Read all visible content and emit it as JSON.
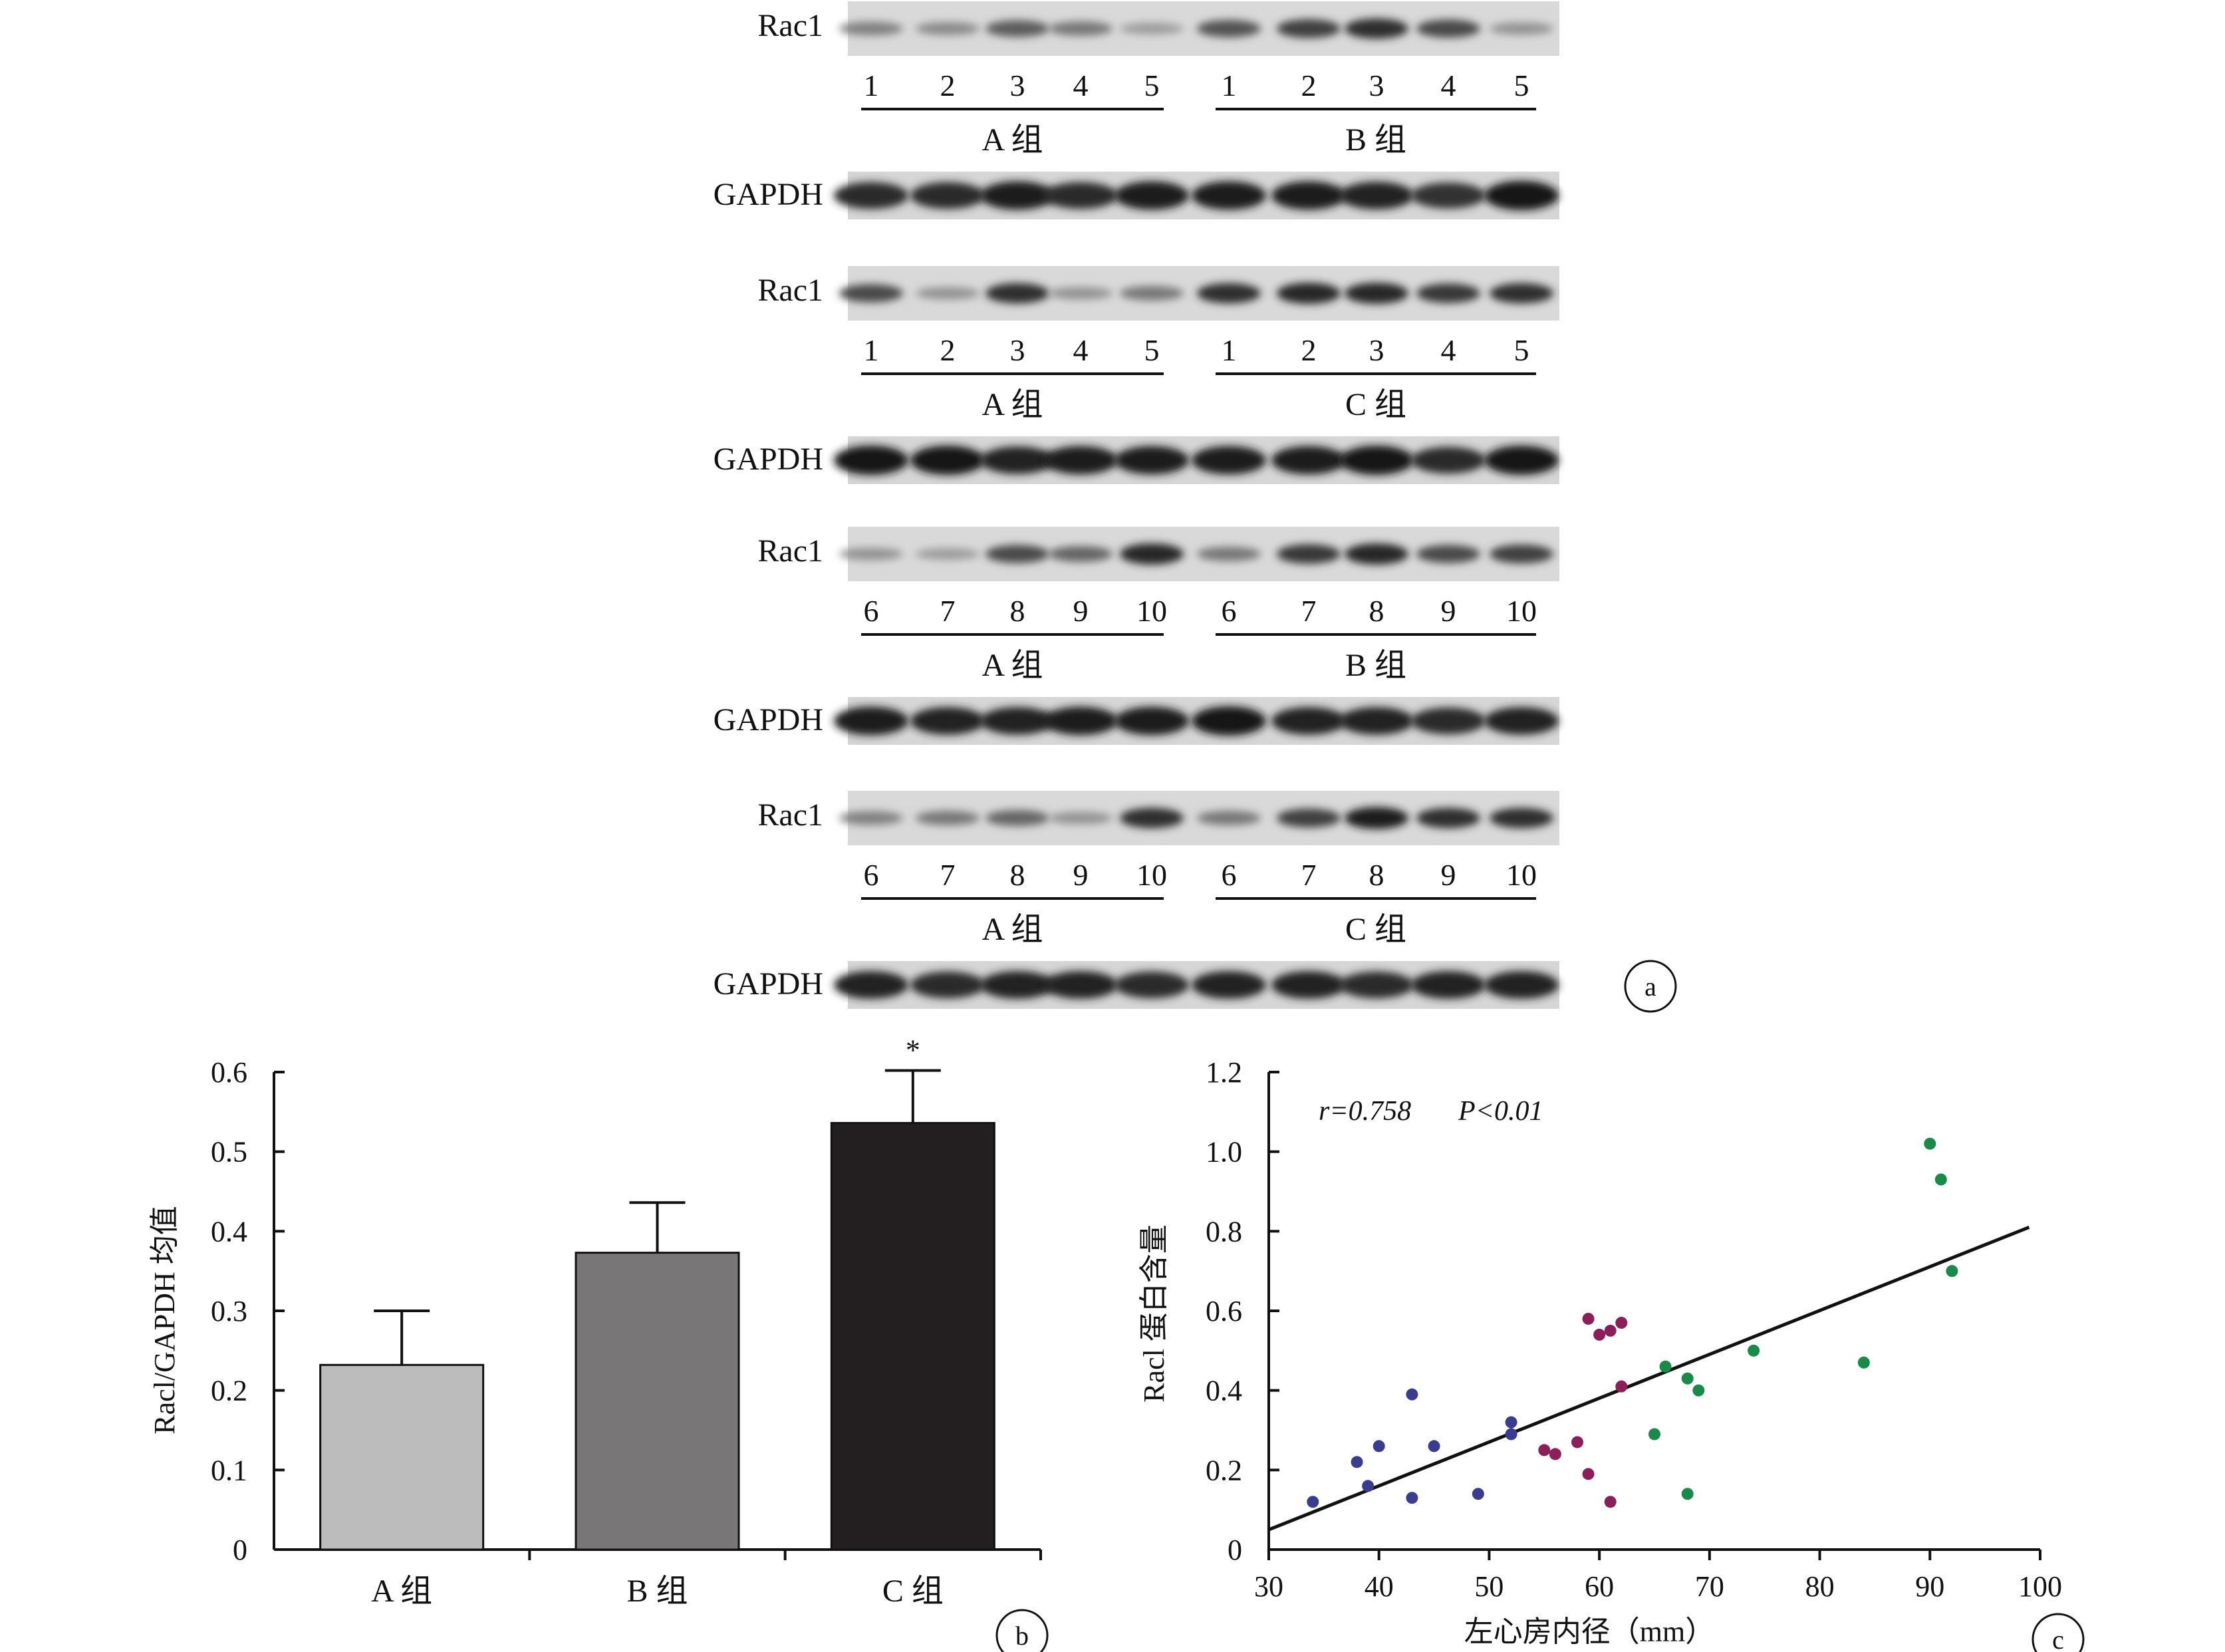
{
  "panel_a": {
    "blocks": [
      {
        "target_label": "Rac1",
        "control_label": "GAPDH",
        "groups": [
          {
            "name": "A 组",
            "lanes": [
              "1",
              "2",
              "3",
              "4",
              "5"
            ]
          },
          {
            "name": "B 组",
            "lanes": [
              "1",
              "2",
              "3",
              "4",
              "5"
            ]
          }
        ],
        "target_intensity": [
          0.4,
          0.35,
          0.6,
          0.45,
          0.25,
          0.65,
          0.75,
          0.85,
          0.7,
          0.3
        ],
        "control_intensity": [
          0.85,
          0.85,
          0.95,
          0.85,
          0.95,
          0.95,
          0.95,
          0.9,
          0.8,
          1.0
        ]
      },
      {
        "target_label": "Rac1",
        "control_label": "GAPDH",
        "groups": [
          {
            "name": "A 组",
            "lanes": [
              "1",
              "2",
              "3",
              "4",
              "5"
            ]
          },
          {
            "name": "C 组",
            "lanes": [
              "1",
              "2",
              "3",
              "4",
              "5"
            ]
          }
        ],
        "target_intensity": [
          0.7,
          0.3,
          0.85,
          0.3,
          0.45,
          0.85,
          0.9,
          0.9,
          0.8,
          0.85
        ],
        "control_intensity": [
          1.0,
          1.0,
          0.9,
          0.95,
          0.95,
          0.95,
          0.95,
          1.0,
          0.85,
          1.0
        ]
      },
      {
        "target_label": "Rac1",
        "control_label": "GAPDH",
        "groups": [
          {
            "name": "A 组",
            "lanes": [
              "6",
              "7",
              "8",
              "9",
              "10"
            ]
          },
          {
            "name": "B 组",
            "lanes": [
              "6",
              "7",
              "8",
              "9",
              "10"
            ]
          }
        ],
        "target_intensity": [
          0.3,
          0.25,
          0.7,
          0.55,
          0.9,
          0.45,
          0.8,
          0.9,
          0.7,
          0.75
        ],
        "control_intensity": [
          0.95,
          0.9,
          0.9,
          0.95,
          0.95,
          1.0,
          0.9,
          0.9,
          0.85,
          0.9
        ]
      },
      {
        "target_label": "Rac1",
        "control_label": "GAPDH",
        "groups": [
          {
            "name": "A 组",
            "lanes": [
              "6",
              "7",
              "8",
              "9",
              "10"
            ]
          },
          {
            "name": "C 组",
            "lanes": [
              "6",
              "7",
              "8",
              "9",
              "10"
            ]
          }
        ],
        "target_intensity": [
          0.4,
          0.45,
          0.55,
          0.3,
          0.85,
          0.45,
          0.75,
          0.95,
          0.85,
          0.85
        ],
        "control_intensity": [
          0.9,
          0.85,
          0.9,
          0.9,
          0.85,
          0.9,
          0.9,
          0.85,
          0.9,
          0.9
        ]
      }
    ],
    "badge": "a"
  },
  "chart_data": [
    {
      "type": "bar",
      "categories": [
        "A 组",
        "B 组",
        "C 组"
      ],
      "values": [
        0.232,
        0.373,
        0.536
      ],
      "errors": [
        0.068,
        0.063,
        0.066
      ],
      "colors": [
        "#bcbcbc",
        "#787677",
        "#231f20"
      ],
      "significance": [
        "",
        "",
        "*"
      ],
      "ylabel": "Racl/GAPDH 均值",
      "xlabel": "",
      "ylim": [
        0,
        0.6
      ],
      "yticks": [
        "0",
        "0.1",
        "0.2",
        "0.3",
        "0.4",
        "0.5",
        "0.6"
      ],
      "badge": "b"
    },
    {
      "type": "scatter",
      "xlabel": "左心房内径（mm）",
      "ylabel": "Racl 蛋白含量",
      "xlim": [
        30,
        100
      ],
      "ylim": [
        0,
        1.2
      ],
      "xticks": [
        "30",
        "40",
        "50",
        "60",
        "70",
        "80",
        "90",
        "100"
      ],
      "yticks": [
        "0",
        "0.2",
        "0.4",
        "0.6",
        "0.8",
        "1.0",
        "1.2"
      ],
      "annotation": {
        "r": "r=0.758",
        "p": "P<0.01"
      },
      "trendline": {
        "x": [
          30,
          99
        ],
        "y": [
          0.05,
          0.81
        ]
      },
      "series": [
        {
          "color": "#3a3d8f",
          "points": [
            [
              34,
              0.12
            ],
            [
              38,
              0.22
            ],
            [
              39,
              0.16
            ],
            [
              40,
              0.26
            ],
            [
              43,
              0.39
            ],
            [
              43,
              0.13
            ],
            [
              45,
              0.26
            ],
            [
              49,
              0.14
            ],
            [
              52,
              0.29
            ],
            [
              52,
              0.32
            ]
          ]
        },
        {
          "color": "#8b1f5a",
          "points": [
            [
              55,
              0.25
            ],
            [
              56,
              0.24
            ],
            [
              58,
              0.27
            ],
            [
              59,
              0.58
            ],
            [
              59,
              0.19
            ],
            [
              60,
              0.54
            ],
            [
              61,
              0.55
            ],
            [
              61,
              0.12
            ],
            [
              62,
              0.57
            ],
            [
              62,
              0.41
            ]
          ]
        },
        {
          "color": "#1a8a4a",
          "points": [
            [
              65,
              0.29
            ],
            [
              66,
              0.46
            ],
            [
              68,
              0.43
            ],
            [
              68,
              0.14
            ],
            [
              69,
              0.4
            ],
            [
              74,
              0.5
            ],
            [
              84,
              0.47
            ],
            [
              90,
              1.02
            ],
            [
              91,
              0.93
            ],
            [
              92,
              0.7
            ]
          ]
        }
      ],
      "badge": "c"
    }
  ]
}
